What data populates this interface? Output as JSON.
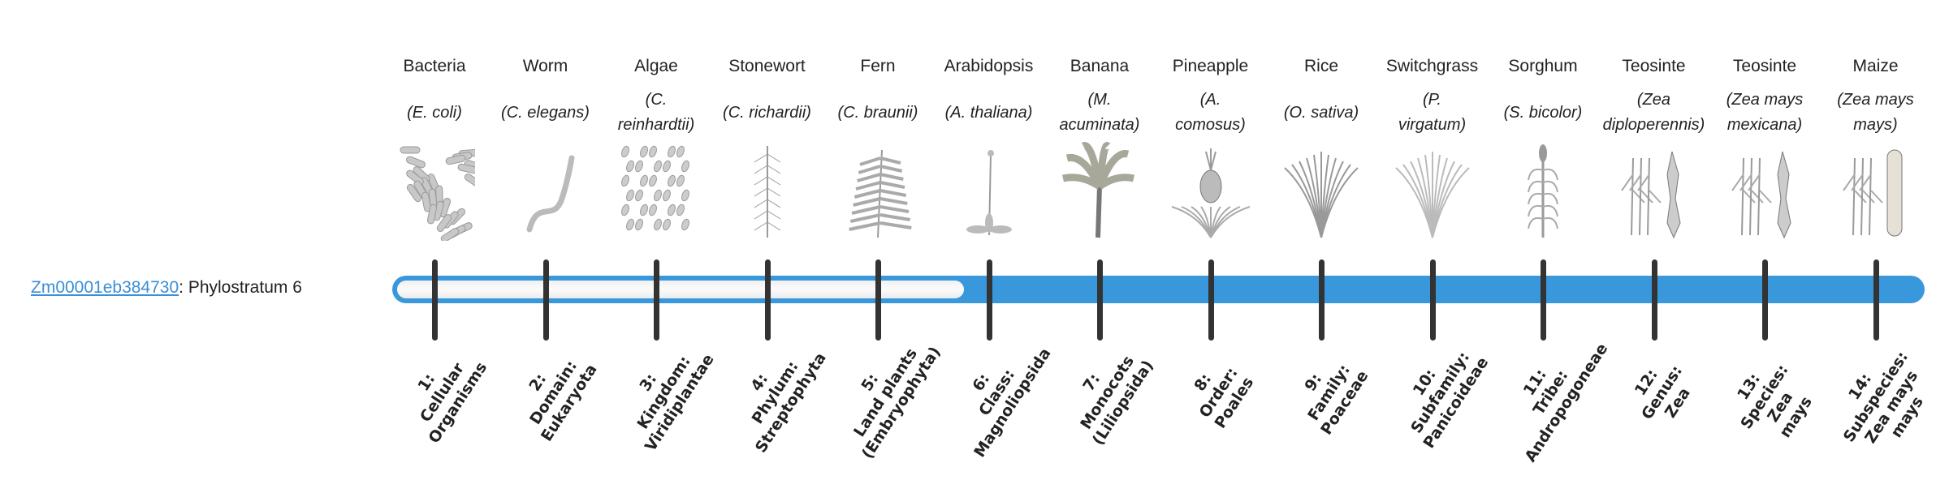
{
  "gene": {
    "id": "Zm00001eb384730",
    "suffix": ": Phylostratum 6"
  },
  "phylostratum": 6,
  "colors": {
    "accent": "#3898db",
    "tick": "#333333",
    "empty": "#f5f5f5"
  },
  "strata": [
    {
      "common": "Bacteria",
      "species": [
        "(E. coli)"
      ],
      "icon": "bacteria-icon",
      "label": [
        "1:",
        "Cellular",
        "Organisms"
      ]
    },
    {
      "common": "Worm",
      "species": [
        "(C. elegans)"
      ],
      "icon": "worm-icon",
      "label": [
        "2:",
        "Domain:",
        "Eukaryota"
      ]
    },
    {
      "common": "Algae",
      "species": [
        "(C.",
        "reinhardtii)"
      ],
      "icon": "algae-icon",
      "label": [
        "3:",
        "Kingdom:",
        "Viridiplantae"
      ]
    },
    {
      "common": "Stonewort",
      "species": [
        "(C. richardii)"
      ],
      "icon": "stonewort-icon",
      "label": [
        "4:",
        "Phylum:",
        "Streptophyta"
      ]
    },
    {
      "common": "Fern",
      "species": [
        "(C. braunii)"
      ],
      "icon": "fern-icon",
      "label": [
        "5:",
        "Land plants",
        "(Embryophyta)"
      ]
    },
    {
      "common": "Arabidopsis",
      "species": [
        "(A. thaliana)"
      ],
      "icon": "arabidopsis-icon",
      "label": [
        "6:",
        "Class:",
        "Magnoliopsida"
      ]
    },
    {
      "common": "Banana",
      "species": [
        "(M.",
        "acuminata)"
      ],
      "icon": "banana-icon",
      "label": [
        "7:",
        "Monocots",
        "(Liliopsida)"
      ]
    },
    {
      "common": "Pineapple",
      "species": [
        "(A.",
        "comosus)"
      ],
      "icon": "pineapple-icon",
      "label": [
        "8:",
        "Order:",
        "Poales"
      ]
    },
    {
      "common": "Rice",
      "species": [
        "(O. sativa)"
      ],
      "icon": "rice-icon",
      "label": [
        "9:",
        "Family:",
        "Poaceae"
      ]
    },
    {
      "common": "Switchgrass",
      "species": [
        "(P.",
        "virgatum)"
      ],
      "icon": "switchgrass-icon",
      "label": [
        "10:",
        "Subfamily:",
        "Panicoideae"
      ]
    },
    {
      "common": "Sorghum",
      "species": [
        "(S. bicolor)"
      ],
      "icon": "sorghum-icon",
      "label": [
        "11:",
        "Tribe:",
        "Andropogoneae"
      ]
    },
    {
      "common": "Teosinte",
      "species": [
        "(Zea",
        "diploperennis)"
      ],
      "icon": "teosinte-icon",
      "label": [
        "12:",
        "Genus:",
        "Zea"
      ]
    },
    {
      "common": "Teosinte",
      "species": [
        "(Zea mays",
        "mexicana)"
      ],
      "icon": "teosinte-icon",
      "label": [
        "13:",
        "Species:",
        "Zea",
        "mays"
      ]
    },
    {
      "common": "Maize",
      "species": [
        "(Zea mays",
        "mays)"
      ],
      "icon": "maize-icon",
      "label": [
        "14:",
        "Subspecies:",
        "Zea mays",
        "mays"
      ]
    }
  ]
}
